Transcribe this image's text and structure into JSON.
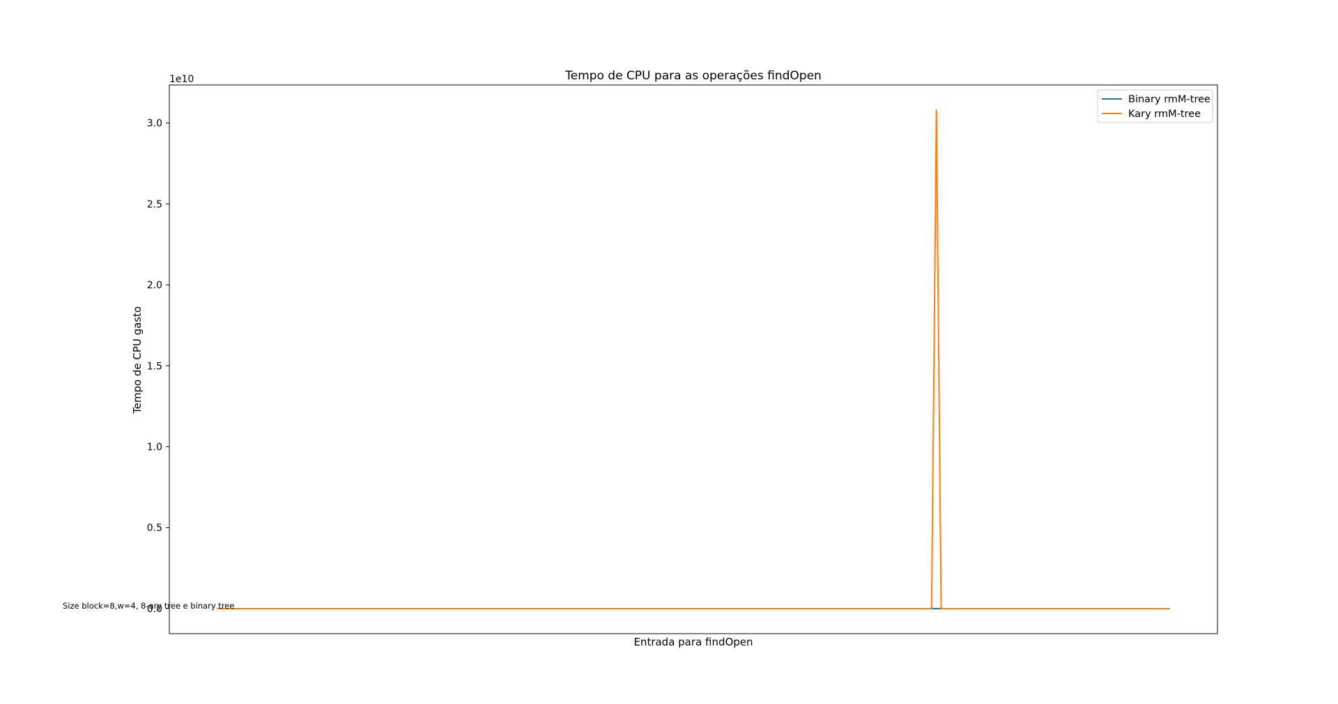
{
  "chart_data": {
    "type": "line",
    "title": "Tempo de CPU para as operações findOpen",
    "xlabel": "Entrada para findOpen",
    "ylabel": "Tempo de CPU gasto",
    "y_offset_label": "1e10",
    "y_scale_factor": 10000000000,
    "ylim": [
      -0.155,
      3.235
    ],
    "xlim": [
      -10,
      210
    ],
    "x_ticks_visible": false,
    "y_ticks": [
      0.0,
      0.5,
      1.0,
      1.5,
      2.0,
      2.5,
      3.0
    ],
    "y_tick_labels": [
      "0.0",
      "0.5",
      "1.0",
      "1.5",
      "2.0",
      "2.5",
      "3.0"
    ],
    "grid": false,
    "legend_position": "top-right",
    "annotation": "Size block=8,w=4, 8-ary tree e binary tree",
    "series": [
      {
        "name": "Binary rmM-tree",
        "color": "#1f77b4",
        "description_values": "constant near zero across all inputs",
        "x": [
          0,
          200
        ],
        "values": [
          0.0,
          0.0
        ]
      },
      {
        "name": "Kary rmM-tree",
        "color": "#ff7f0e",
        "x": [
          0,
          150,
          151,
          152,
          200
        ],
        "values": [
          0.0,
          0.0,
          3.08,
          0.0,
          0.0
        ]
      }
    ]
  }
}
